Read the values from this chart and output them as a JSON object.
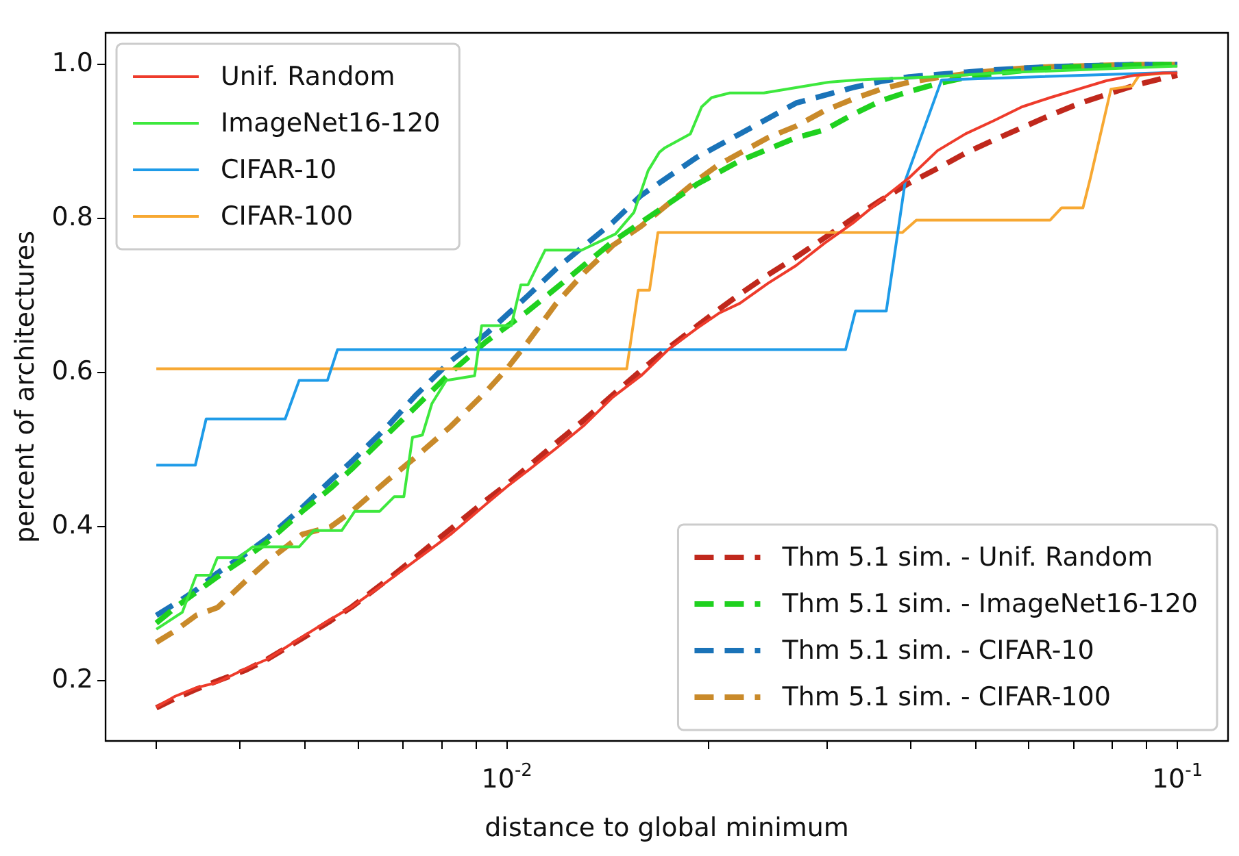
{
  "chart_data": {
    "type": "line",
    "xlabel": "distance to global minimum",
    "ylabel": "percent of architectures",
    "log": "x",
    "grid": false,
    "legend": [
      "top left",
      "bottom right"
    ],
    "marker": "none",
    "xlim": [
      0.00252,
      0.119
    ],
    "ylim": [
      0.122,
      1.041
    ],
    "xticks": [
      {
        "value": 0.003,
        "label": null
      },
      {
        "value": 0.004,
        "label": null
      },
      {
        "value": 0.005,
        "label": null
      },
      {
        "value": 0.006,
        "label": null
      },
      {
        "value": 0.007,
        "label": null
      },
      {
        "value": 0.008,
        "label": null
      },
      {
        "value": 0.009,
        "label": null
      },
      {
        "value": 0.01,
        "label": "10$^{-2}$"
      },
      {
        "value": 0.02,
        "label": null
      },
      {
        "value": 0.03,
        "label": null
      },
      {
        "value": 0.04,
        "label": null
      },
      {
        "value": 0.05,
        "label": null
      },
      {
        "value": 0.06,
        "label": null
      },
      {
        "value": 0.07,
        "label": null
      },
      {
        "value": 0.08,
        "label": null
      },
      {
        "value": 0.09,
        "label": null
      },
      {
        "value": 0.1,
        "label": "10$^{-1}$"
      }
    ],
    "yticks": [
      {
        "value": 0.2,
        "label": "0.2"
      },
      {
        "value": 0.4,
        "label": "0.4"
      },
      {
        "value": 0.6,
        "label": "0.6"
      },
      {
        "value": 0.8,
        "label": "0.8"
      },
      {
        "value": 1.0,
        "label": "1.0"
      }
    ],
    "x": [
      0.003,
      0.0032,
      0.00344,
      0.0037,
      0.00408,
      0.00439,
      0.00495,
      0.00546,
      0.00587,
      0.00663,
      0.0073,
      0.00824,
      0.0093,
      0.01,
      0.01075,
      0.01185,
      0.01305,
      0.01438,
      0.01585,
      0.01746,
      0.01924,
      0.0207,
      0.02226,
      0.02452,
      0.027,
      0.02977,
      0.0328,
      0.03614,
      0.03981,
      0.04386,
      0.04832,
      0.05323,
      0.05865,
      0.06462,
      0.0712,
      0.07844,
      0.08642,
      0.0952,
      0.1
    ],
    "series": [
      {
        "name": "Unif. Random",
        "color": "#ee3b2b",
        "line_style": "solid",
        "values": [
          0.166,
          0.18,
          0.191,
          0.198,
          0.216,
          0.228,
          0.257,
          0.28,
          0.296,
          0.329,
          0.356,
          0.39,
          0.429,
          0.452,
          0.473,
          0.502,
          0.532,
          0.568,
          0.596,
          0.631,
          0.658,
          0.677,
          0.69,
          0.716,
          0.739,
          0.768,
          0.794,
          0.824,
          0.853,
          0.888,
          0.91,
          0.927,
          0.945,
          0.957,
          0.968,
          0.979,
          0.986,
          0.989,
          0.989
        ]
      },
      {
        "name": "ImageNet16-120",
        "color": "#3de83d",
        "line_style": "solid",
        "x": [
          0.003,
          0.00328,
          0.00344,
          0.00361,
          0.0037,
          0.00398,
          0.00418,
          0.0049,
          0.00515,
          0.00567,
          0.00593,
          0.00646,
          0.00679,
          0.00702,
          0.00723,
          0.00748,
          0.00773,
          0.00812,
          0.00895,
          0.00917,
          0.01015,
          0.01049,
          0.01075,
          0.0114,
          0.01293,
          0.01452,
          0.01547,
          0.01624,
          0.01688,
          0.01721,
          0.01878,
          0.01952,
          0.0202,
          0.0215,
          0.02416,
          0.0302,
          0.03327,
          0.04323,
          0.054,
          0.1
        ],
        "values": [
          0.267,
          0.289,
          0.337,
          0.337,
          0.36,
          0.36,
          0.374,
          0.374,
          0.395,
          0.395,
          0.42,
          0.42,
          0.439,
          0.439,
          0.516,
          0.519,
          0.56,
          0.59,
          0.596,
          0.661,
          0.661,
          0.714,
          0.714,
          0.759,
          0.759,
          0.78,
          0.808,
          0.862,
          0.886,
          0.892,
          0.91,
          0.945,
          0.957,
          0.963,
          0.963,
          0.977,
          0.98,
          0.984,
          0.989,
          0.998
        ]
      },
      {
        "name": "CIFAR-10",
        "color": "#1e9be8",
        "line_style": "solid",
        "x": [
          0.003,
          0.00343,
          0.00356,
          0.00467,
          0.0049,
          0.0054,
          0.00559,
          0.032,
          0.0331,
          0.0368,
          0.0393,
          0.0445,
          0.1
        ],
        "values": [
          0.48,
          0.48,
          0.54,
          0.54,
          0.59,
          0.59,
          0.63,
          0.63,
          0.68,
          0.68,
          0.85,
          0.98,
          0.99
        ]
      },
      {
        "name": "CIFAR-100",
        "color": "#f7a832",
        "line_style": "solid",
        "x": [
          0.003,
          0.01509,
          0.0157,
          0.01632,
          0.0168,
          0.0389,
          0.0408,
          0.0646,
          0.0672,
          0.0723,
          0.0741,
          0.0796,
          0.0856,
          0.0877,
          0.1
        ],
        "values": [
          0.605,
          0.605,
          0.707,
          0.707,
          0.782,
          0.782,
          0.798,
          0.798,
          0.814,
          0.814,
          0.851,
          0.968,
          0.972,
          0.986,
          0.99
        ]
      },
      {
        "name": "Thm 5.1 sim. - Unif. Random",
        "color": "#c0281c",
        "line_style": "dashed",
        "values": [
          0.165,
          0.177,
          0.189,
          0.2,
          0.214,
          0.228,
          0.255,
          0.278,
          0.296,
          0.331,
          0.36,
          0.397,
          0.434,
          0.455,
          0.478,
          0.509,
          0.539,
          0.571,
          0.603,
          0.633,
          0.661,
          0.682,
          0.702,
          0.727,
          0.75,
          0.775,
          0.8,
          0.824,
          0.846,
          0.865,
          0.885,
          0.902,
          0.918,
          0.934,
          0.949,
          0.961,
          0.973,
          0.982,
          0.986
        ]
      },
      {
        "name": "Thm 5.1 sim. - ImageNet16-120",
        "color": "#1fd11f",
        "line_style": "dashed",
        "values": [
          0.275,
          0.295,
          0.315,
          0.335,
          0.36,
          0.38,
          0.42,
          0.45,
          0.475,
          0.52,
          0.555,
          0.6,
          0.64,
          0.66,
          0.68,
          0.71,
          0.74,
          0.77,
          0.795,
          0.82,
          0.845,
          0.86,
          0.875,
          0.89,
          0.905,
          0.915,
          0.935,
          0.953,
          0.965,
          0.975,
          0.983,
          0.988,
          0.992,
          0.995,
          0.997,
          0.998,
          0.999,
          1.0,
          1.0
        ]
      },
      {
        "name": "Thm 5.1 sim. - CIFAR-10",
        "color": "#1a73b8",
        "line_style": "dashed",
        "values": [
          0.285,
          0.3,
          0.318,
          0.34,
          0.365,
          0.385,
          0.425,
          0.46,
          0.485,
          0.53,
          0.57,
          0.615,
          0.65,
          0.675,
          0.7,
          0.735,
          0.765,
          0.795,
          0.83,
          0.855,
          0.88,
          0.895,
          0.91,
          0.93,
          0.95,
          0.96,
          0.97,
          0.978,
          0.984,
          0.987,
          0.99,
          0.993,
          0.995,
          0.997,
          0.998,
          0.999,
          1.0,
          1.0,
          1.0
        ]
      },
      {
        "name": "Thm 5.1 sim. - CIFAR-100",
        "color": "#c98a2a",
        "line_style": "dashed",
        "values": [
          0.25,
          0.265,
          0.285,
          0.295,
          0.33,
          0.355,
          0.39,
          0.4,
          0.42,
          0.46,
          0.49,
          0.53,
          0.575,
          0.605,
          0.64,
          0.69,
          0.73,
          0.765,
          0.79,
          0.82,
          0.85,
          0.87,
          0.885,
          0.905,
          0.92,
          0.94,
          0.955,
          0.968,
          0.977,
          0.983,
          0.988,
          0.992,
          0.995,
          0.997,
          0.998,
          0.999,
          1.0,
          1.0,
          1.0
        ]
      }
    ]
  }
}
